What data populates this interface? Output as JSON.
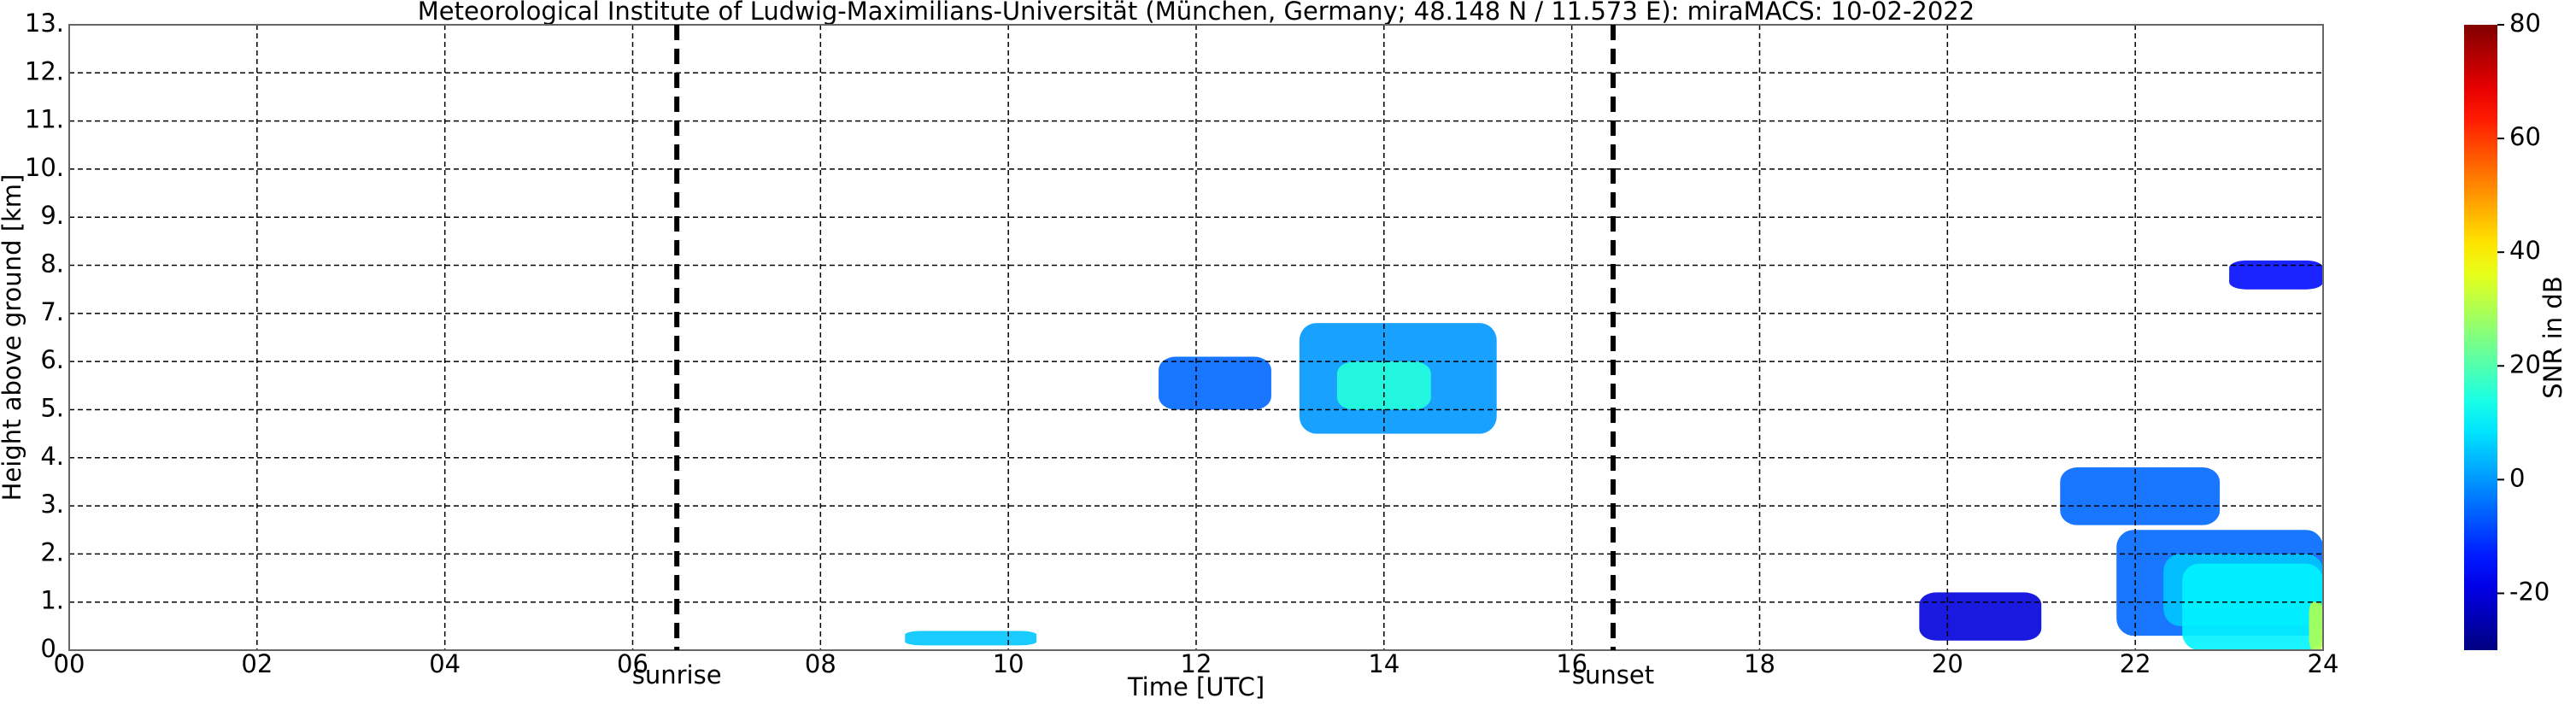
{
  "chart_data": {
    "type": "heatmap",
    "title": "Meteorological Institute of Ludwig-Maximilians-Universität (München, Germany; 48.148 N / 11.573 E):    miraMACS: 10-02-2022",
    "x_label": "Time [UTC]",
    "y_label": "Height above ground [km]",
    "xlim": [
      0,
      24
    ],
    "xticks": [
      {
        "value": 0,
        "label": "00"
      },
      {
        "value": 2,
        "label": "02"
      },
      {
        "value": 4,
        "label": "04"
      },
      {
        "value": 6,
        "label": "06"
      },
      {
        "value": 8,
        "label": "08"
      },
      10,
      12,
      14,
      16,
      18,
      20,
      22,
      24
    ],
    "ylim": [
      0,
      13
    ],
    "yticks": [
      {
        "value": 0,
        "label": "0."
      },
      {
        "value": 1,
        "label": "1."
      },
      {
        "value": 2,
        "label": "2."
      },
      {
        "value": 3,
        "label": "3."
      },
      {
        "value": 4,
        "label": "4."
      },
      {
        "value": 5,
        "label": "5."
      },
      {
        "value": 6,
        "label": "6."
      },
      {
        "value": 7,
        "label": "7."
      },
      {
        "value": 8,
        "label": "8."
      },
      {
        "value": 9,
        "label": "9."
      },
      {
        "value": 10,
        "label": "10."
      },
      {
        "value": 11,
        "label": "11."
      },
      {
        "value": 12,
        "label": "12."
      },
      {
        "value": 13,
        "label": "13."
      }
    ],
    "grid": true,
    "colormap": "jet",
    "clim": [
      -30,
      80
    ],
    "colorbar_label": "SNR in dB",
    "colorbar_ticks": [
      -20,
      0,
      20,
      40,
      60,
      80
    ],
    "cells": [
      {
        "x": [
          11.6,
          12.8
        ],
        "y": [
          5.0,
          6.1
        ],
        "value": -5
      },
      {
        "x": [
          13.1,
          15.2
        ],
        "y": [
          4.5,
          6.8
        ],
        "value": 0
      },
      {
        "x": [
          13.5,
          14.5
        ],
        "y": [
          5.0,
          6.0
        ],
        "value": 15
      },
      {
        "x": [
          23.0,
          24.0
        ],
        "y": [
          7.5,
          8.1
        ],
        "value": -15
      },
      {
        "x": [
          21.2,
          22.9
        ],
        "y": [
          2.6,
          3.8
        ],
        "value": -5
      },
      {
        "x": [
          21.8,
          24.0
        ],
        "y": [
          0.3,
          2.5
        ],
        "value": -5
      },
      {
        "x": [
          22.3,
          24.0
        ],
        "y": [
          0.5,
          2.0
        ],
        "value": 5
      },
      {
        "x": [
          19.7,
          21.0
        ],
        "y": [
          0.2,
          1.2
        ],
        "value": -20
      },
      {
        "x": [
          22.5,
          24.0
        ],
        "y": [
          0.0,
          1.8
        ],
        "value": 10
      },
      {
        "x": [
          8.9,
          10.3
        ],
        "y": [
          0.1,
          0.4
        ],
        "value": 5
      },
      {
        "x": [
          23.85,
          24.0
        ],
        "y": [
          0.0,
          1.0
        ],
        "value": 30
      }
    ],
    "annotations": [
      {
        "text": "sunrise",
        "x": 6.47
      },
      {
        "text": "sunset",
        "x": 16.44
      }
    ]
  }
}
